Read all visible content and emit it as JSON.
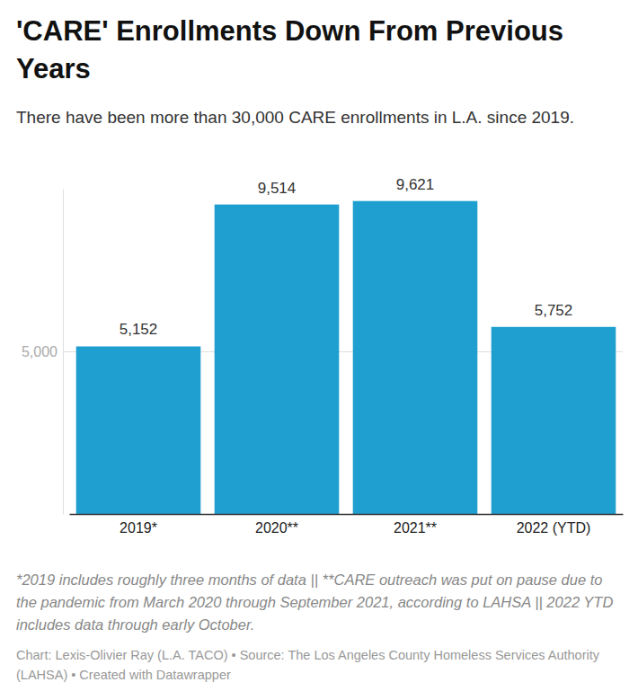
{
  "chart_data": {
    "type": "bar",
    "title": "'CARE' Enrollments Down From Previous Years",
    "subtitle": "There have been more than 30,000 CARE enrollments in L.A. since 2019.",
    "categories": [
      "2019*",
      "2020**",
      "2021**",
      "2022 (YTD)"
    ],
    "values": [
      5152,
      9514,
      9621,
      5752
    ],
    "value_labels": [
      "5,152",
      "9,514",
      "9,621",
      "5,752"
    ],
    "data_labels": true,
    "color": "#1f9fd0",
    "ylim": [
      0,
      10000
    ],
    "yticks": [
      {
        "value": 5000,
        "label": "5,000"
      }
    ],
    "grid": true,
    "notes": "*2019 includes roughly three months of data || **CARE outreach was put on pause due to the pandemic from March 2020 through September 2021, according to LAHSA || 2022 YTD includes data through early October.",
    "source": "Chart: Lexis-Olivier Ray (L.A. TACO) • Source: The Los Angeles County Homeless Services Authority (LAHSA) • Created with Datawrapper"
  }
}
